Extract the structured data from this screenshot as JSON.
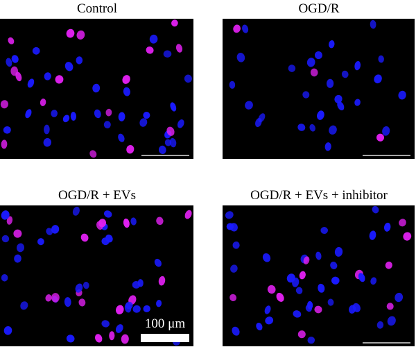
{
  "panels": [
    {
      "title": "Control"
    },
    {
      "title": "OGD/R"
    },
    {
      "title": "OGD/R + EVs"
    },
    {
      "title": "OGD/R + EVs + inhibitor"
    }
  ],
  "scale_bar": {
    "label": "100 μm"
  }
}
